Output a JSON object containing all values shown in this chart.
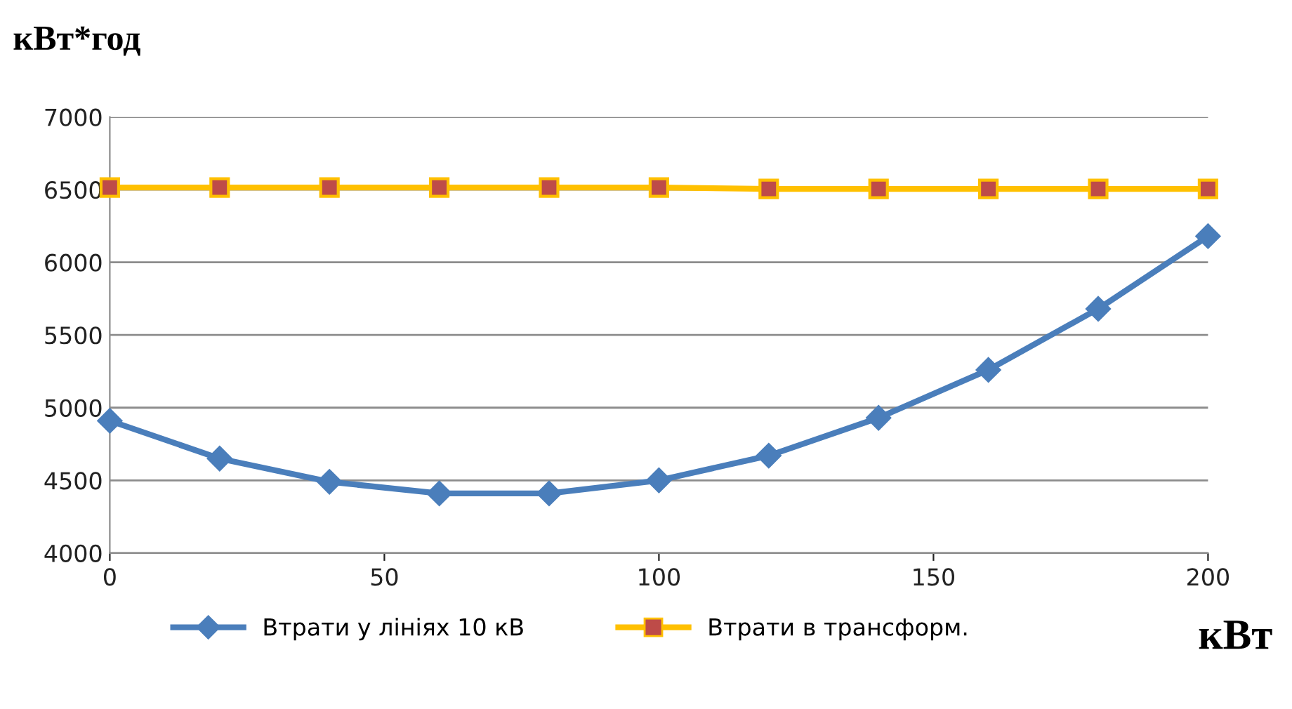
{
  "chart_data": {
    "type": "line",
    "xlabel": "кВт",
    "ylabel": "кВт*год",
    "x": [
      0,
      20,
      40,
      60,
      80,
      100,
      120,
      140,
      160,
      180,
      200
    ],
    "series": [
      {
        "name": "Втрати у лініях 10 кВ",
        "color": "#4a7ebb",
        "marker": "diamond",
        "values": [
          4910,
          4650,
          4490,
          4410,
          4410,
          4500,
          4670,
          4930,
          5260,
          5680,
          6180
        ]
      },
      {
        "name": "Втрати в трансформ.",
        "color": "#ffc000",
        "marker": "square",
        "values": [
          6515,
          6515,
          6515,
          6515,
          6515,
          6515,
          6505,
          6505,
          6505,
          6505,
          6505
        ]
      }
    ],
    "xlim": [
      0,
      200
    ],
    "xticks": [
      0,
      50,
      100,
      150,
      200
    ],
    "ylim": [
      4000,
      7000
    ],
    "yticks": [
      4000,
      4500,
      5000,
      5500,
      6000,
      6500,
      7000
    ],
    "grid": "y",
    "legend": "bottom",
    "line_style": "solid"
  }
}
